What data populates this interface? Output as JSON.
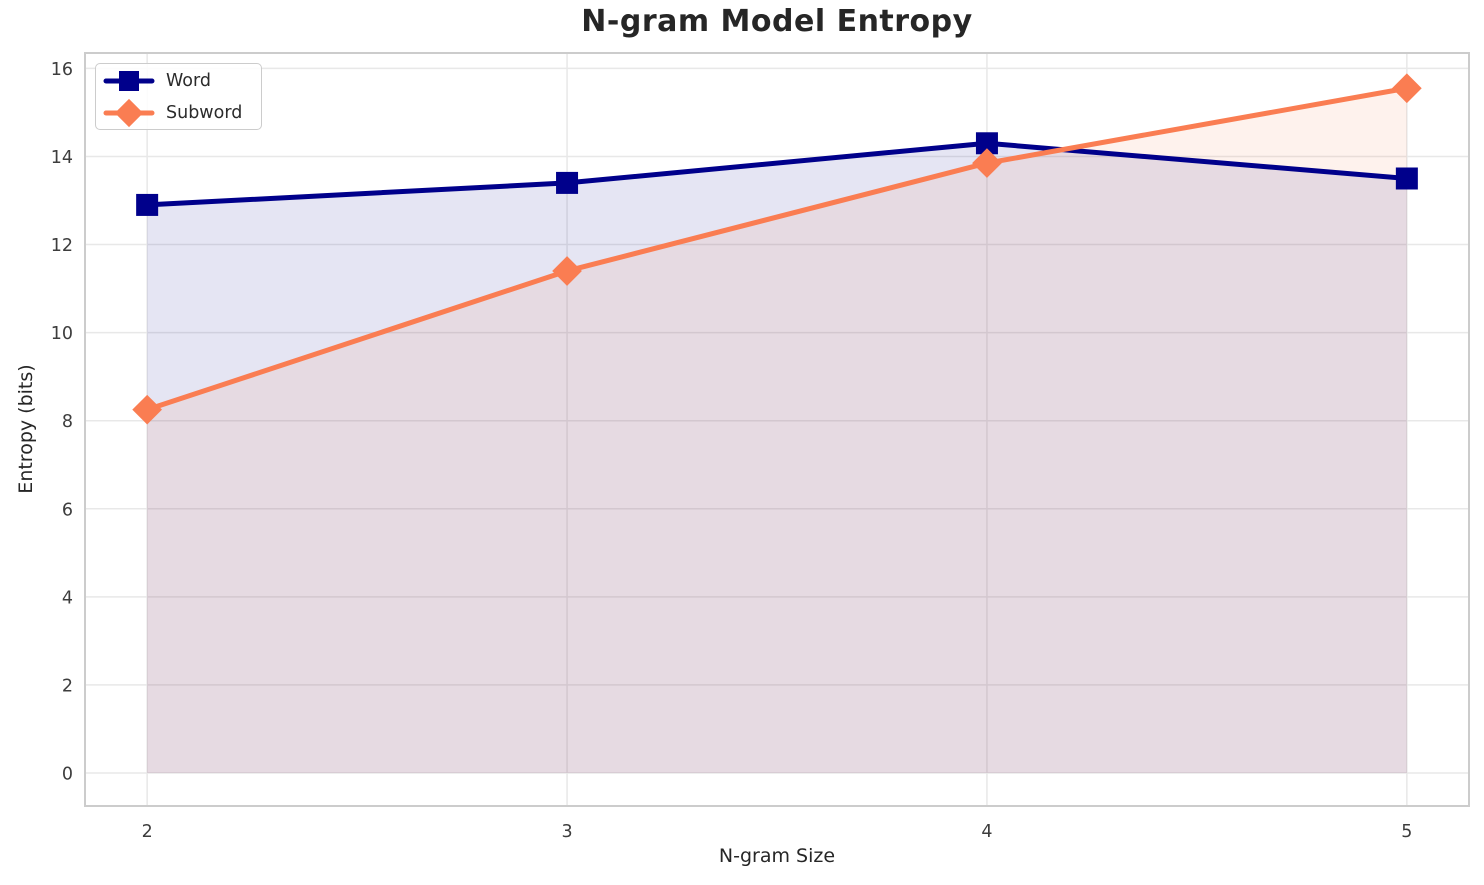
{
  "chart_data": {
    "type": "line",
    "title": "N-gram Model Entropy",
    "xlabel": "N-gram Size",
    "ylabel": "Entropy (bits)",
    "x": [
      2,
      3,
      4,
      5
    ],
    "series": [
      {
        "name": "Word",
        "values": [
          12.9,
          13.4,
          14.3,
          13.5
        ],
        "color": "#00008B",
        "marker": "square",
        "fill_opacity": 0.1
      },
      {
        "name": "Subword",
        "values": [
          8.25,
          11.4,
          13.85,
          15.55
        ],
        "color": "#FA7D52",
        "marker": "diamond",
        "fill_opacity": 0.1
      }
    ],
    "xticks": [
      2,
      3,
      4,
      5
    ],
    "yticks": [
      0,
      2,
      4,
      6,
      8,
      10,
      12,
      14,
      16
    ],
    "xlim": [
      1.852,
      5.148
    ],
    "ylim": [
      -0.75,
      16.35
    ],
    "baseline": 0,
    "grid": true,
    "legend_position": "upper-left",
    "style": {
      "grid_color": "#e8e8e8",
      "spine_color": "#cccccc",
      "line_width": 5,
      "title_color": "#262626",
      "tick_color": "#3d3d3d",
      "background": "#ffffff"
    }
  }
}
